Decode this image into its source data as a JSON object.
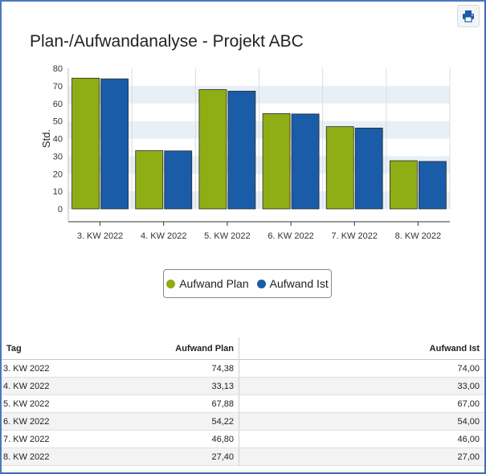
{
  "title": "Plan-/Aufwandanalyse - Projekt ABC",
  "toolbar": {
    "print_icon": "printer-icon"
  },
  "colors": {
    "plan": "#8fad15",
    "ist": "#1a5ca8",
    "band": "#e8eff6",
    "frame": "#4a78c0"
  },
  "legend": {
    "plan_label": "Aufwand Plan",
    "ist_label": "Aufwand Ist"
  },
  "chart_data": {
    "type": "bar",
    "categories": [
      "3. KW 2022",
      "4. KW 2022",
      "5. KW 2022",
      "6. KW 2022",
      "7. KW 2022",
      "8. KW 2022"
    ],
    "series": [
      {
        "name": "Aufwand Plan",
        "values": [
          74.38,
          33.13,
          67.88,
          54.22,
          46.8,
          27.4
        ]
      },
      {
        "name": "Aufwand Ist",
        "values": [
          74.0,
          33.0,
          67.0,
          54.0,
          46.0,
          27.0
        ]
      }
    ],
    "title": "Plan-/Aufwandanalyse - Projekt ABC",
    "xlabel": "",
    "ylabel": "Std.",
    "ylim": [
      0,
      80
    ],
    "yticks": [
      0,
      10,
      20,
      30,
      40,
      50,
      60,
      70,
      80
    ],
    "grid": "alternating horizontal bands",
    "legend_position": "bottom-center"
  },
  "table": {
    "headers": {
      "tag": "Tag",
      "plan": "Aufwand Plan",
      "ist": "Aufwand Ist"
    },
    "rows": [
      {
        "tag": "3. KW 2022",
        "plan": "74,38",
        "ist": "74,00"
      },
      {
        "tag": "4. KW 2022",
        "plan": "33,13",
        "ist": "33,00"
      },
      {
        "tag": "5. KW 2022",
        "plan": "67,88",
        "ist": "67,00"
      },
      {
        "tag": "6. KW 2022",
        "plan": "54,22",
        "ist": "54,00"
      },
      {
        "tag": "7. KW 2022",
        "plan": "46,80",
        "ist": "46,00"
      },
      {
        "tag": "8. KW 2022",
        "plan": "27,40",
        "ist": "27,00"
      }
    ]
  }
}
